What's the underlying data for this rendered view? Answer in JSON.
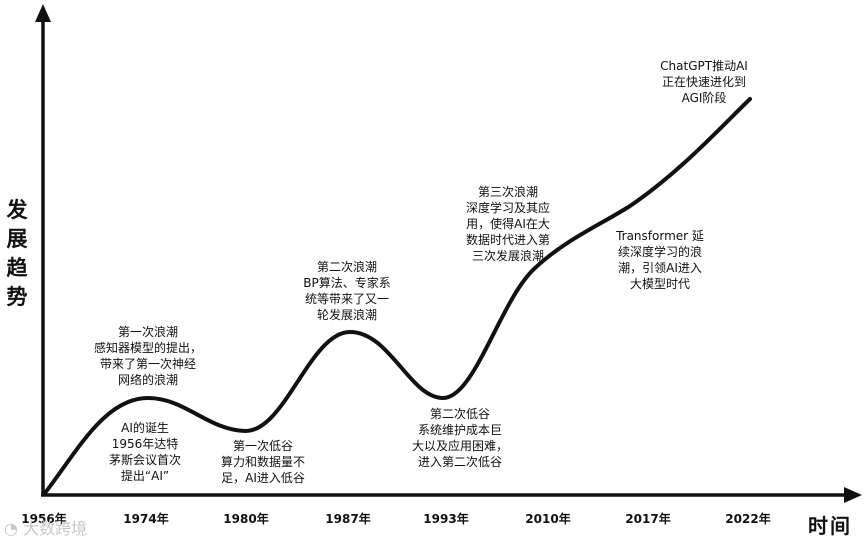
{
  "axes": {
    "y_label": [
      "发",
      "展",
      "趋",
      "势"
    ],
    "x_label": "时间",
    "ticks": [
      {
        "label": "1956年"
      },
      {
        "label": "1974年"
      },
      {
        "label": "1980年"
      },
      {
        "label": "1987年"
      },
      {
        "label": "1993年"
      },
      {
        "label": "2010年"
      },
      {
        "label": "2017年"
      },
      {
        "label": "2022年"
      }
    ]
  },
  "annotations": [
    {
      "key": "first-wave",
      "lines": [
        "第一次浪潮",
        "感知器模型的提出，",
        "带来了第一次神经",
        "网络的浪潮"
      ]
    },
    {
      "key": "ai-birth",
      "lines": [
        "AI的诞生",
        "1956年达特",
        "茅斯会议首次",
        "提出“AI”"
      ]
    },
    {
      "key": "first-trough",
      "lines": [
        "第一次低谷",
        "算力和数据量不",
        "足，AI进入低谷"
      ]
    },
    {
      "key": "second-wave",
      "lines": [
        "第二次浪潮",
        "BP算法、专家系",
        "统等带来了又一",
        "轮发展浪潮"
      ]
    },
    {
      "key": "second-trough",
      "lines": [
        "第二次低谷",
        "系统维护成本巨",
        "大以及应用困难，",
        "进入第二次低谷"
      ]
    },
    {
      "key": "third-wave",
      "lines": [
        "第三次浪潮",
        "深度学习及其应",
        "用，使得AI在大",
        "数据时代进入第",
        "三次发展浪潮"
      ]
    },
    {
      "key": "transformer",
      "lines": [
        "Transformer 延",
        "续深度学习的浪",
        "潮，引领AI进入",
        "大模型时代"
      ]
    },
    {
      "key": "chatgpt",
      "lines": [
        "ChatGPT推动AI",
        "正在快速进化到",
        "AGI阶段"
      ]
    }
  ],
  "watermark": "大数跨境"
}
